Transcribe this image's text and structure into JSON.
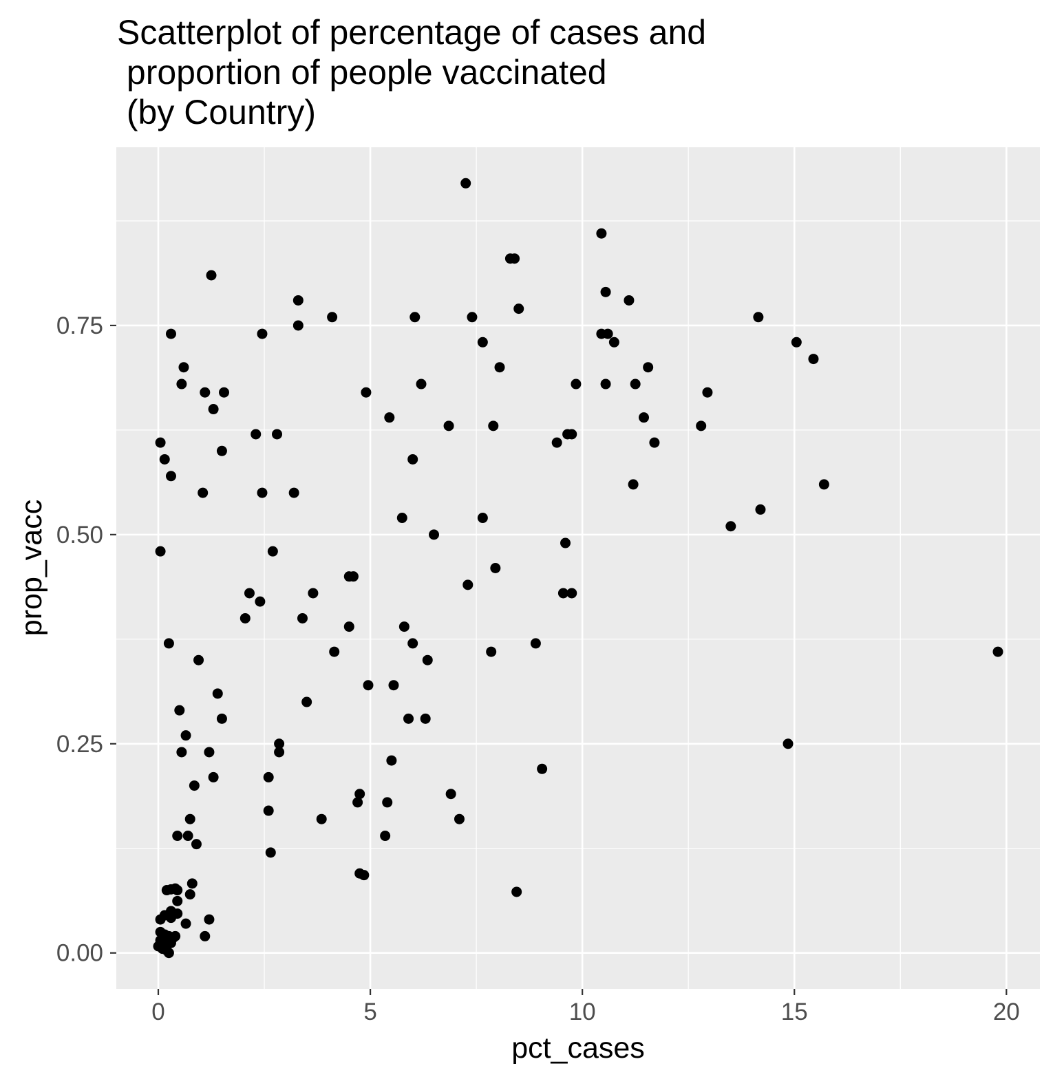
{
  "chart_data": {
    "type": "scatter",
    "title_lines": [
      "Scatterplot of percentage of cases and",
      " proportion of people vaccinated",
      " (by Country)"
    ],
    "xlabel": "pct_cases",
    "ylabel": "prop_vacc",
    "xlim": [
      -0.99,
      20.79
    ],
    "ylim": [
      -0.043,
      0.963
    ],
    "x_ticks": [
      0,
      5,
      10,
      15,
      20
    ],
    "x_tick_labels": [
      "0",
      "5",
      "10",
      "15",
      "20"
    ],
    "y_ticks": [
      0,
      0.25,
      0.5,
      0.75
    ],
    "y_tick_labels": [
      "0.00",
      "0.25",
      "0.50",
      "0.75"
    ],
    "grid": true,
    "colors": {
      "panel_bg": "#ebebeb",
      "grid": "#ffffff",
      "point": "#000000"
    },
    "points": [
      [
        7.25,
        0.92
      ],
      [
        10.45,
        0.86
      ],
      [
        8.3,
        0.83
      ],
      [
        8.4,
        0.83
      ],
      [
        1.25,
        0.81
      ],
      [
        10.55,
        0.79
      ],
      [
        3.3,
        0.78
      ],
      [
        11.1,
        0.78
      ],
      [
        8.5,
        0.77
      ],
      [
        4.1,
        0.76
      ],
      [
        6.05,
        0.76
      ],
      [
        7.4,
        0.76
      ],
      [
        14.15,
        0.76
      ],
      [
        3.3,
        0.75
      ],
      [
        0.3,
        0.74
      ],
      [
        2.45,
        0.74
      ],
      [
        10.45,
        0.74
      ],
      [
        10.6,
        0.74
      ],
      [
        7.65,
        0.73
      ],
      [
        10.75,
        0.73
      ],
      [
        15.05,
        0.73
      ],
      [
        15.45,
        0.71
      ],
      [
        0.6,
        0.7
      ],
      [
        8.05,
        0.7
      ],
      [
        11.55,
        0.7
      ],
      [
        0.55,
        0.68
      ],
      [
        6.2,
        0.68
      ],
      [
        9.85,
        0.68
      ],
      [
        10.55,
        0.68
      ],
      [
        11.25,
        0.68
      ],
      [
        1.1,
        0.67
      ],
      [
        1.55,
        0.67
      ],
      [
        4.9,
        0.67
      ],
      [
        12.95,
        0.67
      ],
      [
        1.3,
        0.65
      ],
      [
        5.45,
        0.64
      ],
      [
        11.45,
        0.64
      ],
      [
        6.85,
        0.63
      ],
      [
        7.9,
        0.63
      ],
      [
        12.8,
        0.63
      ],
      [
        2.3,
        0.62
      ],
      [
        2.8,
        0.62
      ],
      [
        9.65,
        0.62
      ],
      [
        9.75,
        0.62
      ],
      [
        0.05,
        0.61
      ],
      [
        9.4,
        0.61
      ],
      [
        11.7,
        0.61
      ],
      [
        1.5,
        0.6
      ],
      [
        0.15,
        0.59
      ],
      [
        6.0,
        0.59
      ],
      [
        0.3,
        0.57
      ],
      [
        11.2,
        0.56
      ],
      [
        15.7,
        0.56
      ],
      [
        1.05,
        0.55
      ],
      [
        2.45,
        0.55
      ],
      [
        3.2,
        0.55
      ],
      [
        14.2,
        0.53
      ],
      [
        5.75,
        0.52
      ],
      [
        7.65,
        0.52
      ],
      [
        13.5,
        0.51
      ],
      [
        6.5,
        0.5
      ],
      [
        9.6,
        0.49
      ],
      [
        0.05,
        0.48
      ],
      [
        2.7,
        0.48
      ],
      [
        7.95,
        0.46
      ],
      [
        4.5,
        0.45
      ],
      [
        4.6,
        0.45
      ],
      [
        7.3,
        0.44
      ],
      [
        2.15,
        0.43
      ],
      [
        3.65,
        0.43
      ],
      [
        9.55,
        0.43
      ],
      [
        9.75,
        0.43
      ],
      [
        2.4,
        0.42
      ],
      [
        2.05,
        0.4
      ],
      [
        3.4,
        0.4
      ],
      [
        4.5,
        0.39
      ],
      [
        5.8,
        0.39
      ],
      [
        0.25,
        0.37
      ],
      [
        6.0,
        0.37
      ],
      [
        8.9,
        0.37
      ],
      [
        4.15,
        0.36
      ],
      [
        7.85,
        0.36
      ],
      [
        19.8,
        0.36
      ],
      [
        0.95,
        0.35
      ],
      [
        6.35,
        0.35
      ],
      [
        4.95,
        0.32
      ],
      [
        5.55,
        0.32
      ],
      [
        1.4,
        0.31
      ],
      [
        3.5,
        0.3
      ],
      [
        0.5,
        0.29
      ],
      [
        1.5,
        0.28
      ],
      [
        5.9,
        0.28
      ],
      [
        6.3,
        0.28
      ],
      [
        9.05,
        0.22
      ],
      [
        0.65,
        0.26
      ],
      [
        2.85,
        0.25
      ],
      [
        14.85,
        0.25
      ],
      [
        0.55,
        0.24
      ],
      [
        1.2,
        0.24
      ],
      [
        2.85,
        0.24
      ],
      [
        5.5,
        0.23
      ],
      [
        1.3,
        0.21
      ],
      [
        2.6,
        0.21
      ],
      [
        0.85,
        0.2
      ],
      [
        4.75,
        0.19
      ],
      [
        6.9,
        0.19
      ],
      [
        4.7,
        0.18
      ],
      [
        5.4,
        0.18
      ],
      [
        2.6,
        0.17
      ],
      [
        0.75,
        0.16
      ],
      [
        3.85,
        0.16
      ],
      [
        7.1,
        0.16
      ],
      [
        0.45,
        0.14
      ],
      [
        0.7,
        0.14
      ],
      [
        5.35,
        0.14
      ],
      [
        0.9,
        0.13
      ],
      [
        2.65,
        0.12
      ],
      [
        4.75,
        0.095
      ],
      [
        4.85,
        0.093
      ],
      [
        0.8,
        0.083
      ],
      [
        8.45,
        0.073
      ],
      [
        0.2,
        0.075
      ],
      [
        0.3,
        0.076
      ],
      [
        0.45,
        0.075
      ],
      [
        0.4,
        0.077
      ],
      [
        0.75,
        0.07
      ],
      [
        0.45,
        0.062
      ],
      [
        1.2,
        0.04
      ],
      [
        0.3,
        0.05
      ],
      [
        0.45,
        0.047
      ],
      [
        0.15,
        0.045
      ],
      [
        0.05,
        0.04
      ],
      [
        0.3,
        0.042
      ],
      [
        0.65,
        0.035
      ],
      [
        1.1,
        0.02
      ],
      [
        0.05,
        0.025
      ],
      [
        0.15,
        0.022
      ],
      [
        0.25,
        0.02
      ],
      [
        0.35,
        0.018
      ],
      [
        0.4,
        0.02
      ],
      [
        0.05,
        0.015
      ],
      [
        0.1,
        0.012
      ],
      [
        0.2,
        0.01
      ],
      [
        0.3,
        0.012
      ],
      [
        0.0,
        0.008
      ],
      [
        0.1,
        0.005
      ],
      [
        0.2,
        0.003
      ],
      [
        0.25,
        0.0
      ],
      [
        0.15,
        0.018
      ],
      [
        0.05,
        0.01
      ]
    ]
  }
}
